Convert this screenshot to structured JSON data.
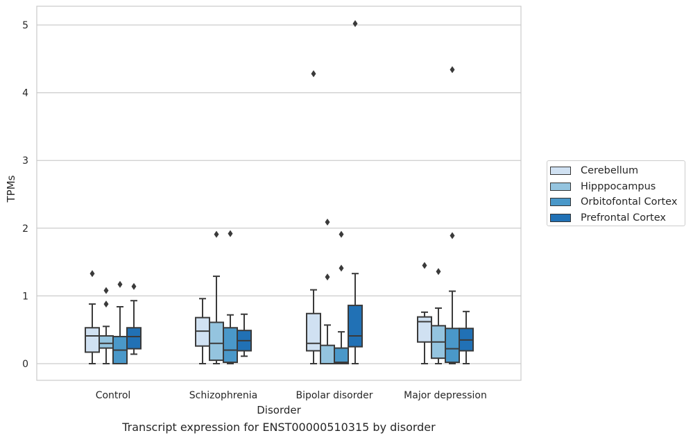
{
  "chart_data": {
    "type": "box",
    "title": "",
    "caption": "Transcript expression for ENST00000510315 by disorder",
    "xlabel": "Disorder",
    "ylabel": "TPMs",
    "ylim": [
      -0.25,
      5.28
    ],
    "yticks": [
      0,
      1,
      2,
      3,
      4,
      5
    ],
    "grid": "horizontal",
    "legend_position": "right",
    "categories": [
      "Control",
      "Schizophrenia",
      "Bipolar disorder",
      "Major depression"
    ],
    "series": [
      {
        "name": "Cerebellum",
        "color": "#d0e1f2",
        "boxes": [
          {
            "whisker_low": 0.0,
            "q1": 0.17,
            "median": 0.41,
            "q3": 0.53,
            "whisker_high": 0.88,
            "outliers": [
              1.33
            ]
          },
          {
            "whisker_low": 0.0,
            "q1": 0.26,
            "median": 0.48,
            "q3": 0.68,
            "whisker_high": 0.96,
            "outliers": []
          },
          {
            "whisker_low": 0.0,
            "q1": 0.19,
            "median": 0.3,
            "q3": 0.74,
            "whisker_high": 1.09,
            "outliers": [
              4.28
            ]
          },
          {
            "whisker_low": 0.0,
            "q1": 0.32,
            "median": 0.62,
            "q3": 0.69,
            "whisker_high": 0.76,
            "outliers": [
              1.45
            ]
          }
        ]
      },
      {
        "name": "Hipppocampus",
        "color": "#94c4df",
        "boxes": [
          {
            "whisker_low": 0.0,
            "q1": 0.23,
            "median": 0.3,
            "q3": 0.41,
            "whisker_high": 0.55,
            "outliers": [
              0.88,
              1.08
            ]
          },
          {
            "whisker_low": 0.0,
            "q1": 0.05,
            "median": 0.3,
            "q3": 0.61,
            "whisker_high": 1.29,
            "outliers": [
              1.91
            ]
          },
          {
            "whisker_low": 0.0,
            "q1": 0.0,
            "median": 0.0,
            "q3": 0.27,
            "whisker_high": 0.57,
            "outliers": [
              1.28,
              2.09
            ]
          },
          {
            "whisker_low": 0.0,
            "q1": 0.08,
            "median": 0.32,
            "q3": 0.56,
            "whisker_high": 0.82,
            "outliers": [
              1.36
            ]
          }
        ]
      },
      {
        "name": "Orbitofontal Cortex",
        "color": "#4a98c9",
        "boxes": [
          {
            "whisker_low": 0.0,
            "q1": 0.0,
            "median": 0.2,
            "q3": 0.4,
            "whisker_high": 0.84,
            "outliers": [
              1.17
            ]
          },
          {
            "whisker_low": 0.0,
            "q1": 0.02,
            "median": 0.2,
            "q3": 0.53,
            "whisker_high": 0.72,
            "outliers": [
              1.92
            ]
          },
          {
            "whisker_low": 0.0,
            "q1": 0.0,
            "median": 0.02,
            "q3": 0.23,
            "whisker_high": 0.47,
            "outliers": [
              1.41,
              1.91
            ]
          },
          {
            "whisker_low": 0.0,
            "q1": 0.02,
            "median": 0.22,
            "q3": 0.52,
            "whisker_high": 1.07,
            "outliers": [
              1.89,
              4.34
            ]
          }
        ]
      },
      {
        "name": "Prefrontal Cortex",
        "color": "#2171b5",
        "boxes": [
          {
            "whisker_low": 0.14,
            "q1": 0.22,
            "median": 0.4,
            "q3": 0.53,
            "whisker_high": 0.93,
            "outliers": [
              1.14
            ]
          },
          {
            "whisker_low": 0.11,
            "q1": 0.19,
            "median": 0.34,
            "q3": 0.49,
            "whisker_high": 0.73,
            "outliers": []
          },
          {
            "whisker_low": 0.0,
            "q1": 0.25,
            "median": 0.41,
            "q3": 0.86,
            "whisker_high": 1.33,
            "outliers": [
              5.02
            ]
          },
          {
            "whisker_low": 0.0,
            "q1": 0.19,
            "median": 0.35,
            "q3": 0.52,
            "whisker_high": 0.77,
            "outliers": []
          }
        ]
      }
    ]
  }
}
